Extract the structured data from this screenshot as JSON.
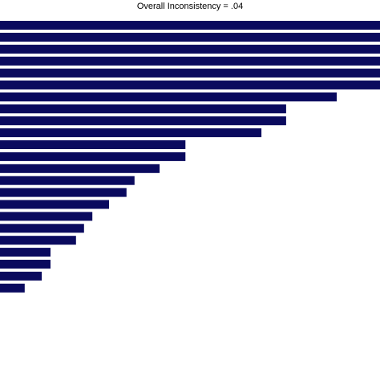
{
  "chart_data": {
    "type": "bar",
    "orientation": "horizontal",
    "title": "Overall Inconsistency = .04",
    "xlabel": "",
    "ylabel": "",
    "xlim": [
      0,
      1
    ],
    "grid": false,
    "legend": "none",
    "colors": {
      "bar": "#0a0a5e",
      "background": "#ffffff",
      "title": "#000000"
    },
    "values": [
      1.0,
      1.0,
      1.0,
      1.0,
      1.0,
      1.0,
      0.886,
      0.753,
      0.753,
      0.688,
      0.488,
      0.488,
      0.42,
      0.354,
      0.333,
      0.287,
      0.243,
      0.221,
      0.2,
      0.133,
      0.133,
      0.11,
      0.065
    ]
  }
}
